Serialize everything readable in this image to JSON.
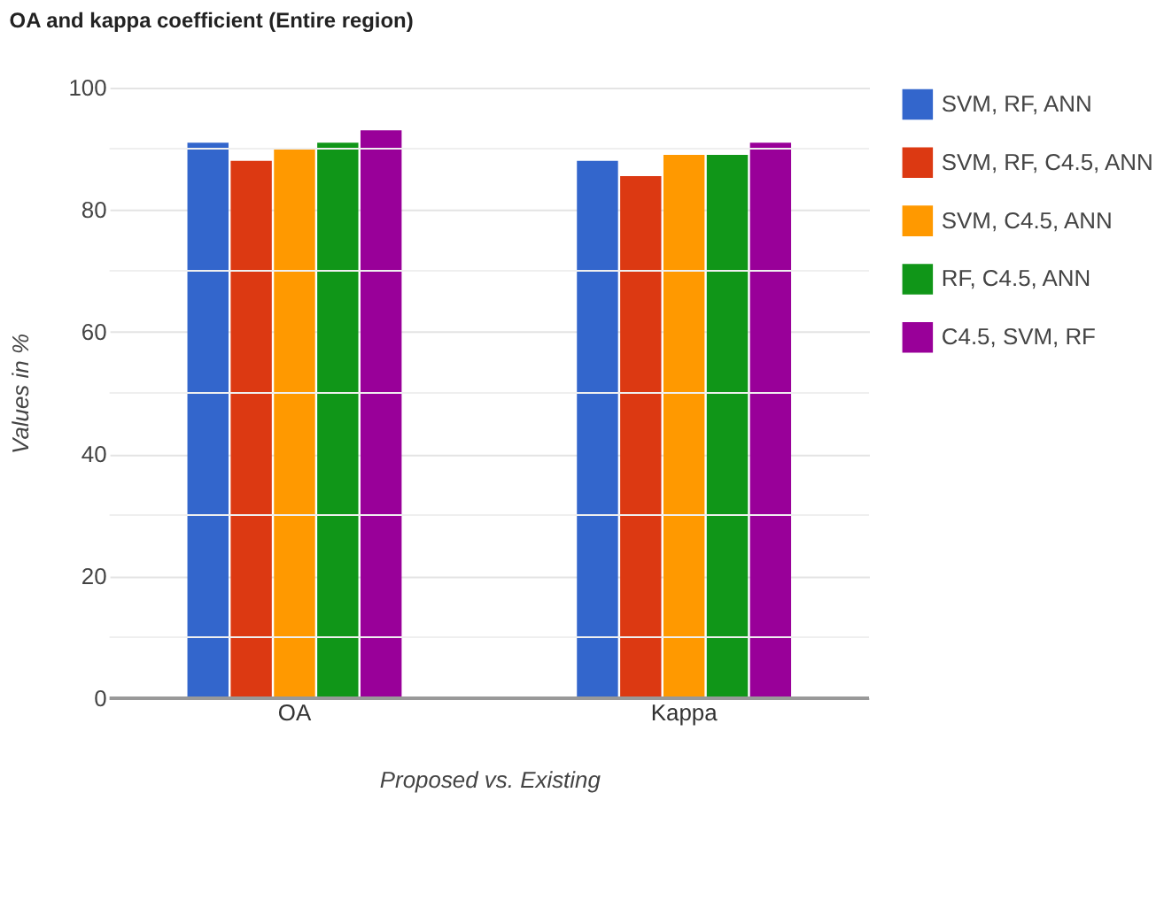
{
  "chart_data": {
    "type": "bar",
    "title": "OA and kappa coefficient (Entire region)",
    "xlabel": "Proposed vs. Existing",
    "ylabel": "Values in %",
    "categories": [
      "OA",
      "Kappa"
    ],
    "series": [
      {
        "name": "SVM, RF, ANN",
        "color": "#3366cc",
        "values": [
          91,
          88
        ]
      },
      {
        "name": "SVM, RF, C4.5, ANN",
        "color": "#dc3912",
        "values": [
          88,
          85.5
        ]
      },
      {
        "name": "SVM, C4.5, ANN",
        "color": "#ff9900",
        "values": [
          90,
          89
        ]
      },
      {
        "name": "RF, C4.5, ANN",
        "color": "#109618",
        "values": [
          91,
          89
        ]
      },
      {
        "name": "C4.5, SVM, RF",
        "color": "#990099",
        "values": [
          93,
          91
        ]
      }
    ],
    "ylim": [
      0,
      100
    ],
    "yticks": [
      0,
      {
        "value": 10,
        "label": null
      },
      20,
      {
        "value": 30,
        "label": null
      },
      40,
      {
        "value": 50,
        "label": null
      },
      60,
      {
        "value": 70,
        "label": null
      },
      80,
      {
        "value": 90,
        "label": null
      },
      100
    ],
    "grid": "y",
    "legend": "right"
  }
}
